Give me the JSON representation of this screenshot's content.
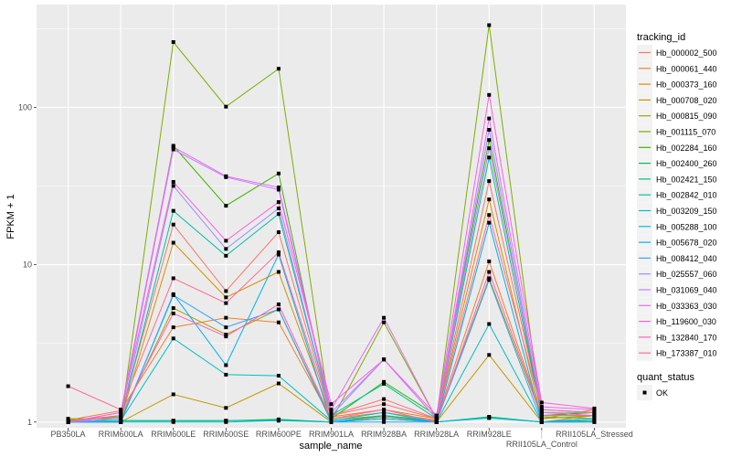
{
  "chart_data": {
    "type": "line",
    "title": "",
    "xlabel": "sample_name",
    "ylabel": "FPKM + 1",
    "y_scale": "log10",
    "ylim": [
      0.92,
      450
    ],
    "y_ticks": [
      "1",
      "10",
      "100"
    ],
    "y_tick_values": [
      1,
      10,
      100
    ],
    "grid": true,
    "legend_position": "right",
    "categories": [
      "PB350LA",
      "RRIM600LA",
      "RRIM600LE",
      "RRIM600SE",
      "RRIM600PE",
      "RRIM901LA",
      "RRIM928BA",
      "RRIM928LA",
      "RRIM928LE",
      "RRII105LA_Control",
      "RRII105LA_Stressed"
    ],
    "color_legend_title": "tracking_id",
    "shape_legend_title": "quant_status",
    "shape_legend_items": [
      "OK"
    ],
    "series": [
      {
        "name": "Hb_000002_500",
        "color": "#F8766D",
        "values": [
          1.02,
          1.1,
          18,
          6.8,
          16.1,
          1.1,
          1.4,
          1.05,
          34,
          1.15,
          1.1
        ]
      },
      {
        "name": "Hb_000061_440",
        "color": "#EA8331",
        "values": [
          1.03,
          1.18,
          4.0,
          4.6,
          4.3,
          1.05,
          1.15,
          1.03,
          10.5,
          1.1,
          1.15
        ]
      },
      {
        "name": "Hb_000373_160",
        "color": "#D89000",
        "values": [
          1.0,
          1.05,
          13.8,
          6.2,
          9.0,
          1.08,
          1.2,
          1.05,
          26,
          1.05,
          1.2
        ]
      },
      {
        "name": "Hb_000708_020",
        "color": "#C09B00",
        "values": [
          1.0,
          1.0,
          1.5,
          1.23,
          1.76,
          1.0,
          1.08,
          1.0,
          2.67,
          1.0,
          1.1
        ]
      },
      {
        "name": "Hb_000815_090",
        "color": "#A3A500",
        "values": [
          1.05,
          1.05,
          5.3,
          3.6,
          5.2,
          1.03,
          1.1,
          1.02,
          8.2,
          1.08,
          1.05
        ]
      },
      {
        "name": "Hb_001115_070",
        "color": "#7CAE00",
        "values": [
          1.0,
          1.0,
          260,
          101,
          176,
          1.02,
          4.3,
          1.05,
          333,
          1.05,
          1.1
        ]
      },
      {
        "name": "Hb_002284_160",
        "color": "#39B600",
        "values": [
          1.02,
          1.08,
          57,
          23.7,
          38,
          1.05,
          1.8,
          1.1,
          62,
          1.1,
          1.15
        ]
      },
      {
        "name": "Hb_002400_260",
        "color": "#00BB4E",
        "values": [
          1.0,
          1.02,
          1.02,
          1.02,
          1.04,
          1.0,
          1.05,
          1.0,
          1.07,
          1.0,
          1.02
        ]
      },
      {
        "name": "Hb_002421_150",
        "color": "#00BF7D",
        "values": [
          1.0,
          1.02,
          1.02,
          1.02,
          1.03,
          1.0,
          1.1,
          1.0,
          1.08,
          1.0,
          1.02
        ]
      },
      {
        "name": "Hb_002842_010",
        "color": "#00C1A3",
        "values": [
          1.0,
          1.05,
          22,
          11.4,
          21,
          1.1,
          1.75,
          1.05,
          48,
          1.1,
          1.1
        ]
      },
      {
        "name": "Hb_003209_150",
        "color": "#00BFC4",
        "values": [
          1.0,
          1.02,
          3.4,
          2.0,
          1.97,
          1.02,
          1.15,
          1.0,
          4.2,
          1.0,
          1.05
        ]
      },
      {
        "name": "Hb_005288_100",
        "color": "#00BAE0",
        "values": [
          1.0,
          1.0,
          1.0,
          1.0,
          1.02,
          1.0,
          1.05,
          1.0,
          1.06,
          1.0,
          1.0
        ]
      },
      {
        "name": "Hb_005678_020",
        "color": "#00B0F6",
        "values": [
          1.0,
          1.0,
          6.5,
          2.3,
          11.6,
          1.0,
          1.1,
          1.0,
          18.5,
          1.0,
          1.05
        ]
      },
      {
        "name": "Hb_008412_040",
        "color": "#35A2FF",
        "values": [
          1.0,
          1.0,
          6.4,
          4.0,
          5.2,
          1.0,
          1.0,
          1.0,
          8.0,
          1.0,
          1.0
        ]
      },
      {
        "name": "Hb_025557_060",
        "color": "#9590FF",
        "values": [
          1.0,
          1.05,
          31.7,
          12.6,
          22.8,
          1.1,
          2.5,
          1.05,
          72,
          1.15,
          1.15
        ]
      },
      {
        "name": "Hb_031069_040",
        "color": "#C77CFF",
        "values": [
          1.0,
          1.1,
          54,
          36,
          30,
          1.15,
          2.5,
          1.05,
          55,
          1.2,
          1.15
        ]
      },
      {
        "name": "Hb_033363_030",
        "color": "#E76BF3",
        "values": [
          1.0,
          1.15,
          56,
          36.5,
          31,
          1.2,
          4.6,
          1.05,
          85,
          1.25,
          1.2
        ]
      },
      {
        "name": "Hb_119600_030",
        "color": "#FA62DB",
        "values": [
          1.0,
          1.15,
          33.6,
          14.2,
          25,
          1.3,
          2.5,
          1.1,
          120,
          1.33,
          1.22
        ]
      },
      {
        "name": "Hb_132840_170",
        "color": "#FF62BC",
        "values": [
          1.0,
          1.1,
          4.9,
          3.5,
          5.6,
          1.05,
          1.2,
          1.0,
          9.0,
          1.1,
          1.1
        ]
      },
      {
        "name": "Hb_173387_010",
        "color": "#FF6C91",
        "values": [
          1.69,
          1.2,
          8.2,
          5.7,
          12,
          1.1,
          1.3,
          1.05,
          20.7,
          1.2,
          1.15
        ]
      }
    ]
  }
}
